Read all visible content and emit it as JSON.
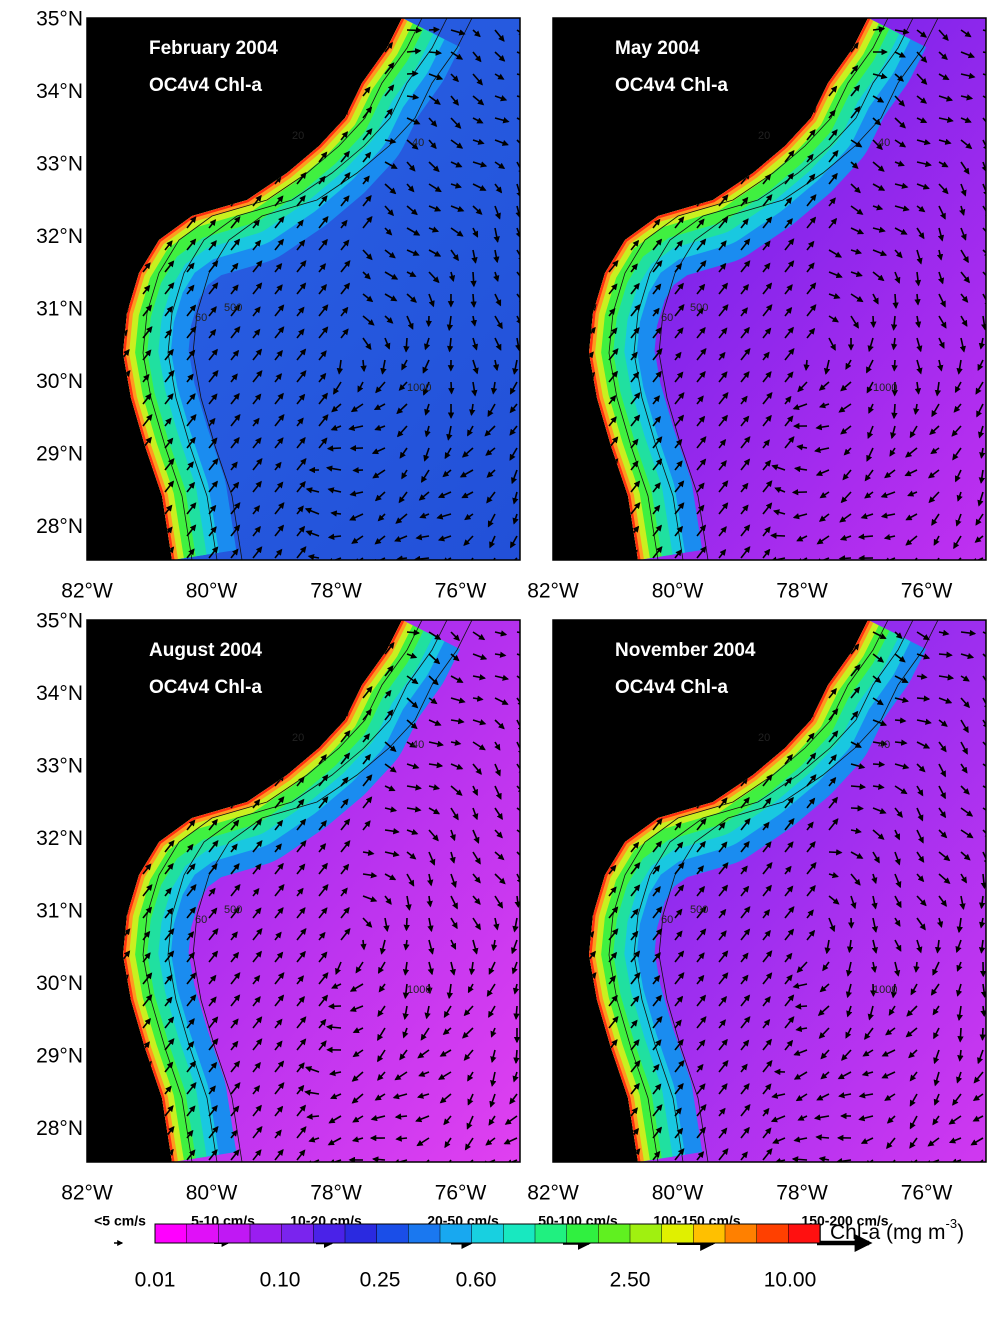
{
  "panels": [
    {
      "title": "February 2004",
      "subtitle": "OC4v4 Chl-a"
    },
    {
      "title": "May 2004",
      "subtitle": "OC4v4 Chl-a"
    },
    {
      "title": "August 2004",
      "subtitle": "OC4v4 Chl-a"
    },
    {
      "title": "November 2004",
      "subtitle": "OC4v4 Chl-a"
    }
  ],
  "lat_labels": [
    "35°N",
    "34°N",
    "33°N",
    "32°N",
    "31°N",
    "30°N",
    "29°N",
    "28°N"
  ],
  "lon_labels": [
    "82°W",
    "80°W",
    "78°W",
    "76°W"
  ],
  "contour_labels": [
    "20",
    "40",
    "60",
    "500",
    "1000"
  ],
  "vector_legend": [
    "<5 cm/s",
    "5-10 cm/s",
    "10-20 cm/s",
    "20-50 cm/s",
    "50-100 cm/s",
    "100-150 cm/s",
    "150-200 cm/s"
  ],
  "colorbar": {
    "label": "Chl-a (mg m",
    "label_sup": "-3",
    "label_end": ")",
    "ticks": [
      "0.01",
      "0.10",
      "0.25",
      "0.60",
      "2.50",
      "10.00"
    ]
  }
}
